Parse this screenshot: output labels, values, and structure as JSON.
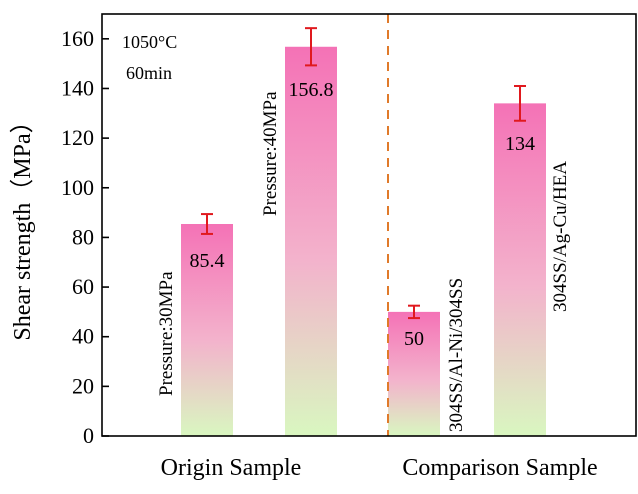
{
  "chart_data": {
    "type": "bar",
    "ylabel": "Shear strength（MPa）",
    "ylim": [
      0,
      170
    ],
    "yticks": [
      0,
      20,
      40,
      60,
      80,
      100,
      120,
      140,
      160
    ],
    "conditions": [
      "1050°C",
      "60min"
    ],
    "groups": [
      "Origin Sample",
      "Comparison Sample"
    ],
    "bars": [
      {
        "group": "Origin Sample",
        "label": "Pressure:30MPa",
        "value": 85.4,
        "value_label": "85.4",
        "error": 4
      },
      {
        "group": "Origin Sample",
        "label": "Pressure:40MPa",
        "value": 156.8,
        "value_label": "156.8",
        "error": 7.5
      },
      {
        "group": "Comparison Sample",
        "label": "304SS/Al-Ni/304SS",
        "value": 50,
        "value_label": "50",
        "error": 2.5
      },
      {
        "group": "Comparison Sample",
        "label": "304SS/Ag-Cu/HEA",
        "value": 134,
        "value_label": "134",
        "error": 7
      }
    ],
    "colors": {
      "bar_top": "#f472b6",
      "bar_mid": "#f3b3cc",
      "bar_bottom": "#d9f7c0",
      "error_bar": "#e0191e",
      "divider": "#e07a2a",
      "axis": "#000000"
    }
  }
}
